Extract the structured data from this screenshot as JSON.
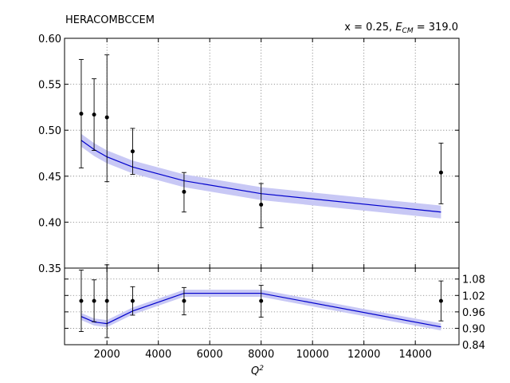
{
  "chart_data": [
    {
      "type": "line",
      "panel": "main",
      "title_left": "HERACOMBCCEM",
      "annotation_prefix": "x = 0.25, ",
      "annotation_ecm_value": "= 319.0",
      "ylim": [
        0.35,
        0.6
      ],
      "xlim": [
        350,
        15700
      ],
      "y_ticks": [
        "0.35",
        "0.40",
        "0.45",
        "0.50",
        "0.55",
        "0.60"
      ],
      "grid": true,
      "data_points": [
        {
          "x": 1000,
          "y": 0.518,
          "err_low": 0.459,
          "err_high": 0.577
        },
        {
          "x": 1500,
          "y": 0.517,
          "err_low": 0.478,
          "err_high": 0.556
        },
        {
          "x": 2000,
          "y": 0.514,
          "err_low": 0.444,
          "err_high": 0.582
        },
        {
          "x": 3000,
          "y": 0.477,
          "err_low": 0.452,
          "err_high": 0.502
        },
        {
          "x": 5000,
          "y": 0.433,
          "err_low": 0.411,
          "err_high": 0.454
        },
        {
          "x": 8000,
          "y": 0.419,
          "err_low": 0.394,
          "err_high": 0.442
        },
        {
          "x": 15000,
          "y": 0.454,
          "err_low": 0.42,
          "err_high": 0.486
        }
      ],
      "theory_curve": [
        {
          "x": 1000,
          "y": 0.489,
          "band_low": 0.482,
          "band_high": 0.496
        },
        {
          "x": 1500,
          "y": 0.479,
          "band_low": 0.472,
          "band_high": 0.486
        },
        {
          "x": 2000,
          "y": 0.471,
          "band_low": 0.464,
          "band_high": 0.478
        },
        {
          "x": 3000,
          "y": 0.46,
          "band_low": 0.453,
          "band_high": 0.467
        },
        {
          "x": 5000,
          "y": 0.445,
          "band_low": 0.438,
          "band_high": 0.452
        },
        {
          "x": 8000,
          "y": 0.431,
          "band_low": 0.424,
          "band_high": 0.438
        },
        {
          "x": 15000,
          "y": 0.411,
          "band_low": 0.404,
          "band_high": 0.418
        }
      ]
    },
    {
      "type": "line",
      "panel": "ratio",
      "xlabel": "Q",
      "xlabel_sup": "2",
      "ylim": [
        0.84,
        1.12
      ],
      "xlim": [
        350,
        15700
      ],
      "x_ticks": [
        2000,
        4000,
        6000,
        8000,
        10000,
        12000,
        14000
      ],
      "y_ticks": [
        "0.84",
        "0.90",
        "0.96",
        "1.02",
        "1.08"
      ],
      "grid": true,
      "data_points": [
        {
          "x": 1000,
          "y": 1.0,
          "err_low": 0.888,
          "err_high": 1.113
        },
        {
          "x": 1500,
          "y": 1.0,
          "err_low": 0.924,
          "err_high": 1.077
        },
        {
          "x": 2000,
          "y": 1.0,
          "err_low": 0.866,
          "err_high": 1.132
        },
        {
          "x": 3000,
          "y": 1.0,
          "err_low": 0.948,
          "err_high": 1.052
        },
        {
          "x": 5000,
          "y": 1.0,
          "err_low": 0.949,
          "err_high": 1.049
        },
        {
          "x": 8000,
          "y": 1.0,
          "err_low": 0.941,
          "err_high": 1.057
        },
        {
          "x": 15000,
          "y": 1.0,
          "err_low": 0.927,
          "err_high": 1.073
        }
      ],
      "theory_curve": [
        {
          "x": 1000,
          "y": 0.943,
          "band_low": 0.93,
          "band_high": 0.956
        },
        {
          "x": 1500,
          "y": 0.923,
          "band_low": 0.91,
          "band_high": 0.936
        },
        {
          "x": 2000,
          "y": 0.917,
          "band_low": 0.904,
          "band_high": 0.93
        },
        {
          "x": 3000,
          "y": 0.963,
          "band_low": 0.95,
          "band_high": 0.976
        },
        {
          "x": 5000,
          "y": 1.028,
          "band_low": 1.015,
          "band_high": 1.041
        },
        {
          "x": 8000,
          "y": 1.028,
          "band_low": 1.015,
          "band_high": 1.041
        },
        {
          "x": 15000,
          "y": 0.905,
          "band_low": 0.892,
          "band_high": 0.918
        }
      ]
    }
  ],
  "colors": {
    "line": "#0000cc",
    "band": "#c8c8f5",
    "points": "#000000"
  }
}
